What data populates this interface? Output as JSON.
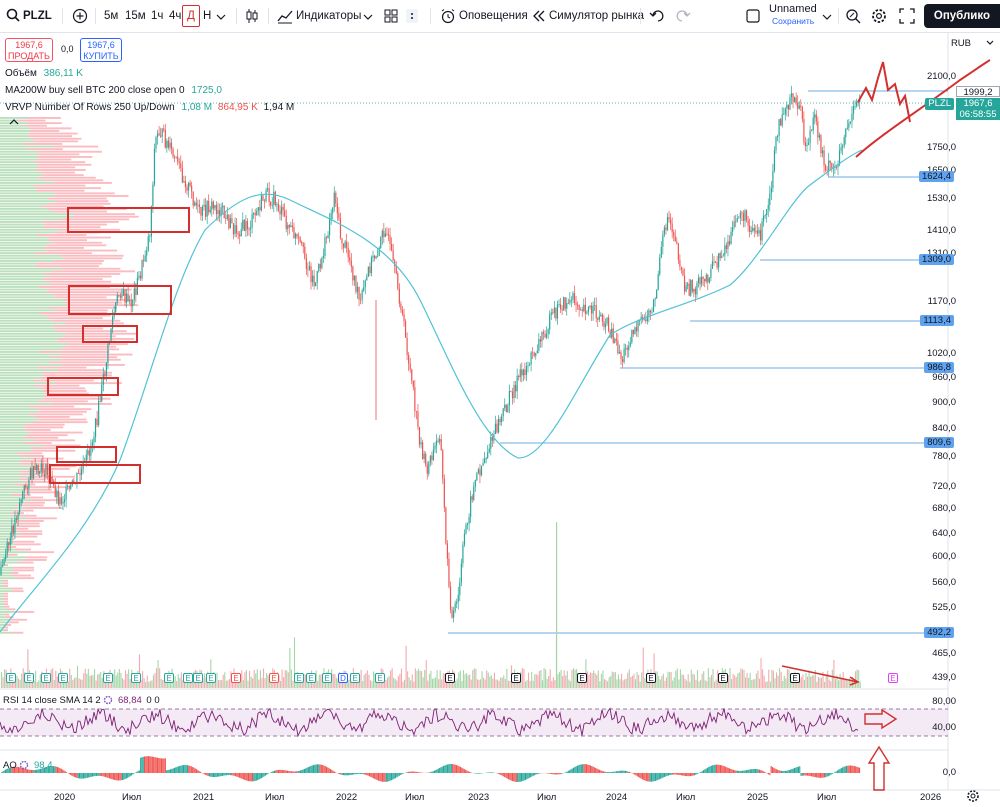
{
  "toolbar": {
    "symbol": "PLZL",
    "intervals": [
      "5м",
      "15м",
      "1ч",
      "4ч",
      "Д",
      "Н"
    ],
    "selected_interval": "Д",
    "indicators_label": "Индикаторы",
    "alerts_label": "Оповещения",
    "replay_label": "Симулятор рынка",
    "layout_name": "Unnamed",
    "layout_status": "Сохранить",
    "publish_label": "Опублико"
  },
  "trade": {
    "sell_price": "1967,6",
    "sell_label": "ПРОДАТЬ",
    "spread": "0,0",
    "buy_price": "1967,6",
    "buy_label": "КУПИТЬ"
  },
  "legends": {
    "volume_name": "Объём",
    "volume_value": "386,11 K",
    "ma_name": "MA200W buy sell BTC 200 close open 0",
    "ma_value": "1725,0",
    "vrvp_name": "VRVP Number Of Rows 250 Up/Down",
    "vrvp_up": "1,08 M",
    "vrvp_down": "864,95 K",
    "vrvp_total": "1,94 M",
    "rsi_name": "RSI 14 close SMA 14 2",
    "rsi_value": "68,84",
    "rsi_extra": "0  0",
    "ao_name": "AO",
    "ao_value": "98,4"
  },
  "price_axis": {
    "currency": "RUB",
    "ticks": [
      "2100,0",
      "1750,0",
      "1650,0",
      "1530,0",
      "1410,0",
      "1310,0",
      "1170,0",
      "1020,0",
      "960,0",
      "900,0",
      "840,0",
      "780,0",
      "720,0",
      "680,0",
      "640,0",
      "600,0",
      "560,0",
      "525,0",
      "465,0",
      "439,0"
    ],
    "levels": [
      "1999,2",
      "1624,4",
      "1309,0",
      "1113,4",
      "986,8",
      "809,6",
      "492,2"
    ],
    "symbol_tag": "PLZL",
    "last_price": "1967,6",
    "countdown": "06:58:55",
    "rsi_ticks": [
      "80,00",
      "40,00"
    ],
    "ao_ticks": [
      "0,0"
    ]
  },
  "time_axis": [
    "2020",
    "Июл",
    "2021",
    "Июл",
    "2022",
    "Июл",
    "2023",
    "Июл",
    "2024",
    "Июл",
    "2025",
    "Июл",
    "2026"
  ],
  "events": [
    "E",
    "E",
    "E",
    "E",
    "E",
    "E",
    "E",
    "E",
    "E",
    "E",
    "E",
    "E",
    "E",
    "E",
    "E",
    "D",
    "E",
    "E",
    "E",
    "E",
    "E",
    "E",
    "E",
    "E",
    "E"
  ],
  "colors": {
    "up": "#26a69a",
    "down": "#ef5350",
    "ma": "#4fc3d6",
    "rsi": "#7e1f73",
    "annotation": "#d32f2f",
    "level_line": "#3d8fd6"
  }
}
